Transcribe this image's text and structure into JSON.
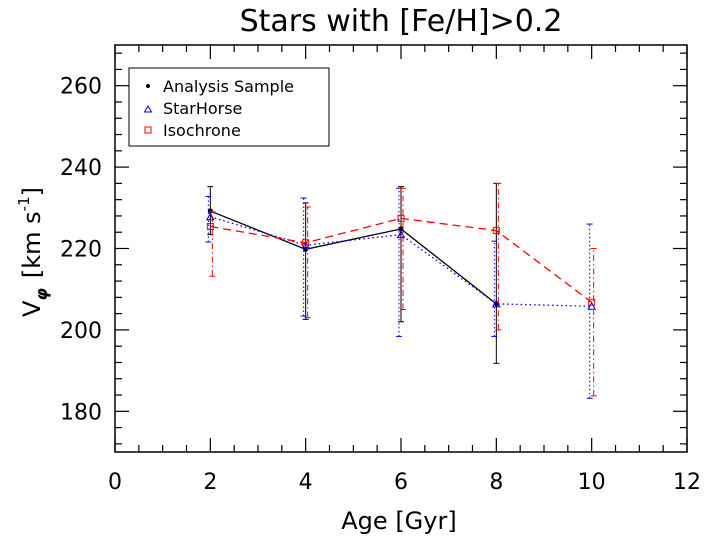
{
  "chart_data": {
    "type": "line",
    "title": "Stars with [Fe/H]>0.2",
    "xlabel": "Age [Gyr]",
    "ylabel": "V_φ [km s^-1]",
    "ylabel_parts": {
      "symbol": "V",
      "subscript": "φ",
      "unit_prefix": "[km s",
      "superscript": "-1",
      "unit_suffix": "]"
    },
    "xlim": [
      0,
      12
    ],
    "ylim": [
      170,
      270
    ],
    "x_ticks": [
      0,
      2,
      4,
      6,
      8,
      10,
      12
    ],
    "y_ticks": [
      180,
      200,
      220,
      240,
      260
    ],
    "grid": false,
    "legend_position": "top-left",
    "series": [
      {
        "name": "Analysis Sample",
        "color": "#000000",
        "line_style": "solid",
        "marker": "dot",
        "x": [
          2,
          4,
          6,
          8
        ],
        "y": [
          229.2,
          219.8,
          224.8,
          206.4
        ],
        "err_low": [
          223.4,
          202.6,
          202.0,
          191.8
        ],
        "err_high": [
          235.2,
          231.2,
          235.2,
          236.0
        ]
      },
      {
        "name": "StarHorse",
        "color": "#0000ff",
        "line_style": "dotted",
        "marker": "triangle",
        "x": [
          2,
          4,
          6,
          8,
          10
        ],
        "y": [
          227.8,
          220.8,
          223.4,
          206.4,
          205.8
        ],
        "err_low": [
          221.6,
          203.4,
          198.4,
          198.4,
          183.2
        ],
        "err_high": [
          232.8,
          232.4,
          234.8,
          221.8,
          226.0
        ]
      },
      {
        "name": "Isochrone",
        "color": "#ff0000",
        "line_style": "dashed",
        "marker": "square",
        "x": [
          2,
          4,
          6,
          8,
          10
        ],
        "y": [
          225.4,
          221.4,
          227.4,
          224.4,
          206.8
        ],
        "err_low": [
          213.2,
          203.0,
          205.0,
          200.0,
          183.8
        ],
        "err_high": [
          229.0,
          230.2,
          234.8,
          236.0,
          220.0
        ]
      }
    ]
  }
}
